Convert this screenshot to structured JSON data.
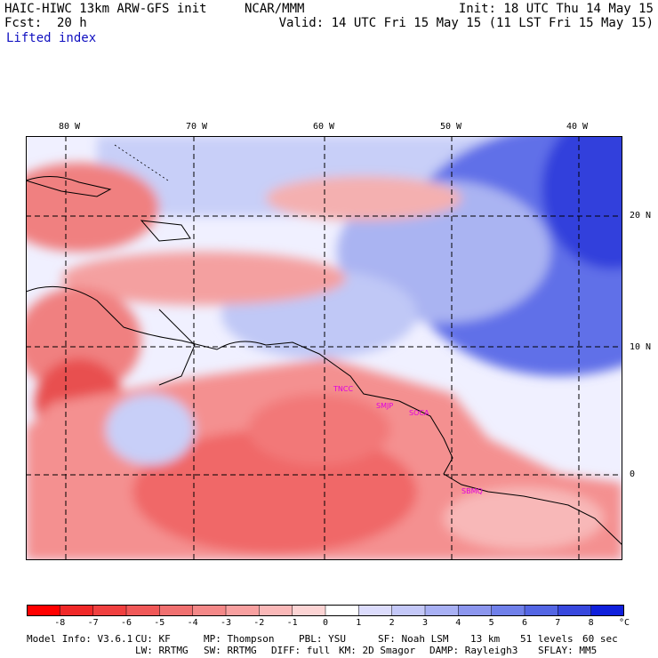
{
  "header": {
    "model_line": "HAIC-HIWC 13km ARW-GFS init",
    "org": "NCAR/MMM",
    "forecast_label": "Fcst:",
    "forecast_value": "20 h",
    "field": "Lifted index",
    "init": "Init: 18 UTC Thu 14 May 15",
    "valid": "Valid: 14 UTC Fri 15 May 15 (11 LST Fri 15 May 15)"
  },
  "map": {
    "lon_labels": [
      "80 W",
      "70 W",
      "60 W",
      "50 W",
      "40 W"
    ],
    "lat_labels": [
      "20 N",
      "10 N",
      "0"
    ],
    "stations": [
      "TNCC",
      "SMJP",
      "SOCA",
      "SBMQ"
    ],
    "colors": {
      "strong_negative": "#f02020",
      "negative": "#f07070",
      "weak_negative": "#f8b0b0",
      "neutral": "#ffffff",
      "weak_positive": "#c8cff8",
      "positive": "#8a96f0",
      "strong_positive": "#4050e0",
      "station_label": "#e000e0"
    }
  },
  "colorbar": {
    "ticks": [
      "-8",
      "-7",
      "-6",
      "-5",
      "-4",
      "-3",
      "-2",
      "-1",
      "0",
      "1",
      "2",
      "3",
      "4",
      "5",
      "6",
      "7",
      "8"
    ],
    "unit": "°C",
    "colors": [
      "#ff0000",
      "#f02828",
      "#f04040",
      "#f05858",
      "#f07070",
      "#f48888",
      "#f8a0a0",
      "#fab8b8",
      "#fcd4d4",
      "#ffffff",
      "#dcdcfc",
      "#c4c8f8",
      "#a8b0f4",
      "#8c96ee",
      "#7080ea",
      "#5466e4",
      "#3848de",
      "#1020dc"
    ]
  },
  "footer": {
    "line1": [
      "Model Info: V3.6.1",
      "CU: KF",
      "MP: Thompson",
      "PBL: YSU",
      "SF: Noah LSM",
      "13 km",
      "51 levels",
      "60 sec"
    ],
    "line2": [
      "LW: RRTMG",
      "SW: RRTMG",
      "DIFF: full",
      "KM: 2D Smagor",
      "DAMP: Rayleigh3",
      "SFLAY: MM5"
    ]
  }
}
